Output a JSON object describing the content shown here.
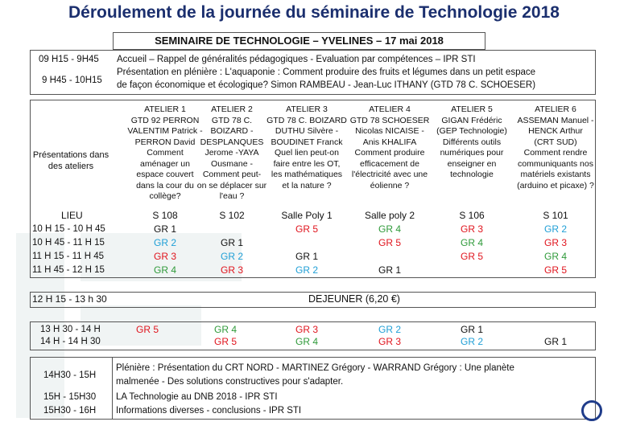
{
  "page_title": "Déroulement de la journée du séminaire de Technologie 2018",
  "header": "SEMINAIRE DE TECHNOLOGIE – YVELINES – 17 mai 2018",
  "morning": [
    {
      "time": "09 H15 - 9H45",
      "text": "Accueil – Rappel de généralités pédagogiques - Evaluation par compétences – IPR STI"
    },
    {
      "time": "9 H45 - 10H15",
      "line1": "Présentation en plénière : L'aquaponie : Comment produire des fruits et légumes dans  un petit espace",
      "line2": "de façon économique et écologique?  Simon RAMBEAU - Jean-Luc ITHANY (GTD 78 C. SCHOESER)"
    }
  ],
  "ateliers_label_1": "Présentations dans",
  "ateliers_label_2": "des ateliers",
  "ateliers": [
    {
      "name": "ATELIER 1",
      "lines": [
        "GTD 92 PERRON",
        "VALENTIM Patrick -",
        "PERRON David",
        "Comment",
        "aménager un",
        "espace couvert",
        "dans la cour du",
        "collège?"
      ],
      "room": "S 108"
    },
    {
      "name": "ATELIER 2",
      "lines": [
        "GTD 78 C.",
        "BOIZARD -",
        "DESPLANQUES",
        "Jerome -YAYA",
        "Ousmane -",
        "Comment peut-",
        "on se déplacer sur",
        "l'eau ?"
      ],
      "room": "S 102"
    },
    {
      "name": "ATELIER 3",
      "lines": [
        "GTD 78 C. BOIZARD",
        "DUTHU Silvère -",
        "BOUDINET Franck",
        "Quel lien peut-on",
        "faire entre les OT,",
        "les mathématiques",
        "et la nature ?"
      ],
      "room": "Salle Poly 1"
    },
    {
      "name": "ATELIER 4",
      "lines": [
        "GTD 78 SCHOESER",
        "Nicolas NICAISE -",
        "Anis KHALIFA",
        "Comment produire",
        "efficacement de",
        "l'électricité avec une",
        "éolienne ?"
      ],
      "room": "Salle poly 2"
    },
    {
      "name": "ATELIER 5",
      "lines": [
        "GIGAN Frédéric",
        "(GEP Technologie)",
        "Différents outils",
        "numériques pour",
        "enseigner en",
        "technologie"
      ],
      "room": "S 106"
    },
    {
      "name": "ATELIER 6",
      "lines": [
        "ASSEMAN Manuel -",
        "HENCK Arthur",
        "(CRT SUD)",
        "Comment rendre",
        "communiquants nos",
        "matériels existants",
        "(arduino et picaxe) ?"
      ],
      "room": "S 101"
    }
  ],
  "lieu_label": "LIEU",
  "slots": [
    {
      "time": "10 H 15 - 10 H 45",
      "groups": [
        "GR 1",
        "",
        "GR 5",
        "GR 4",
        "GR 3",
        "GR 2"
      ]
    },
    {
      "time": "10 H 45 - 11 H 15",
      "groups": [
        "GR 2",
        "GR 1",
        "",
        "GR 5",
        "GR 4",
        "GR 3"
      ]
    },
    {
      "time": "11 H 15 - 11 H 45",
      "groups": [
        "GR 3",
        "GR 2",
        "GR 1",
        "",
        "GR 5",
        "GR 4"
      ]
    },
    {
      "time": "11 H 45 - 12 H 15",
      "groups": [
        "GR 4",
        "GR 3",
        "GR 2",
        "GR 1",
        "",
        "GR 5"
      ]
    }
  ],
  "lunch_time": "12 H 15 - 13 h 30",
  "lunch_text": "DEJEUNER (6,20 €)",
  "afternoon_times": [
    "13 H 30 - 14 H",
    "14 H - 14 H 30"
  ],
  "afternoon_groups": [
    "GR 5",
    "GR 4",
    "GR 3",
    "GR 2",
    "GR 1"
  ],
  "afternoon_groups_2": [
    "",
    "GR 5",
    "GR 4",
    "GR 3",
    "GR 2",
    "GR 1"
  ],
  "closing": [
    {
      "time": "14H30 - 15H",
      "line1": "Plénière : Présentation du CRT NORD -  MARTINEZ Grégory - WARRAND Grégory : Une planète",
      "line2": "malmenée -  Des solutions constructives pour s'adapter."
    },
    {
      "time": "15H - 15H30",
      "text": "LA Technologie au DNB 2018 - IPR STI"
    },
    {
      "time": "15H30 - 16H",
      "text": "Informations diverses - conclusions - IPR STI"
    }
  ],
  "colors": {
    "GR 1": "#111111",
    "GR 2": "#1f9fd6",
    "GR 3": "#e0141d",
    "GR 4": "#2f9a3a",
    "GR 5": "#e0141d"
  }
}
